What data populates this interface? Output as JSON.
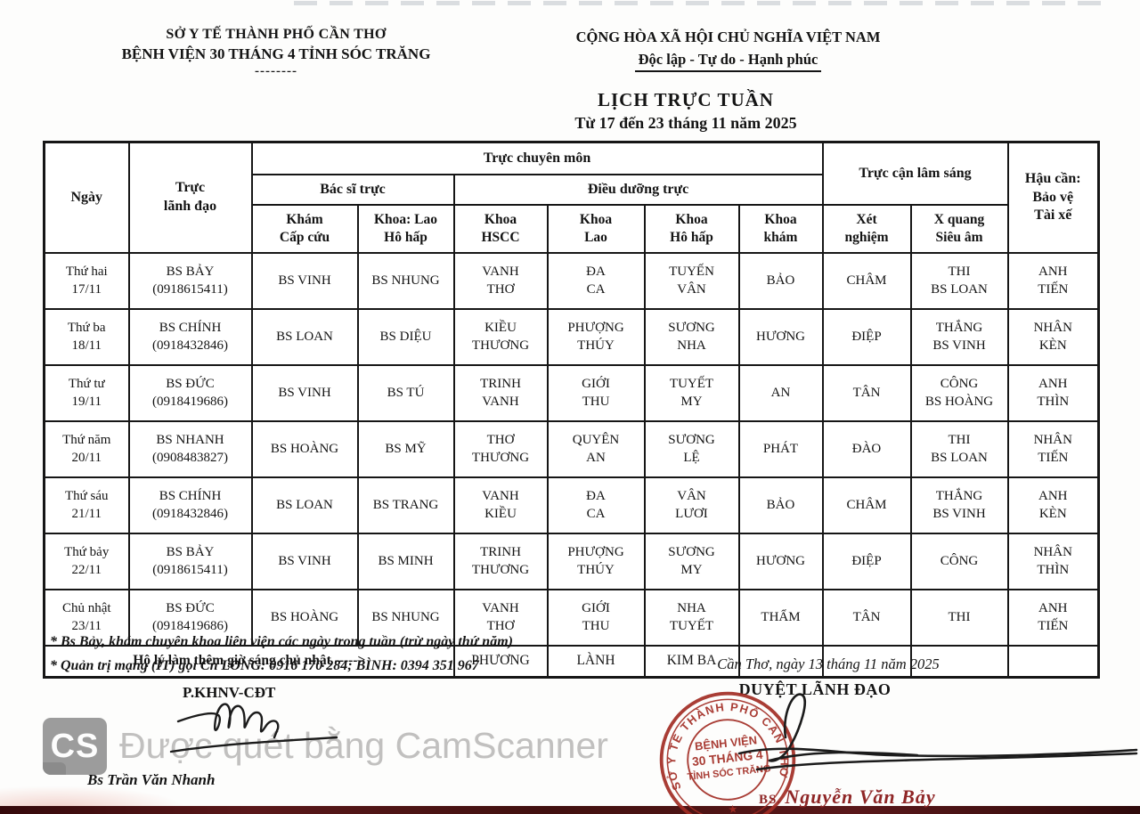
{
  "page": {
    "header_left": {
      "line1": "SỞ Y TẾ THÀNH PHỐ CẦN THƠ",
      "line2": "BỆNH VIỆN 30 THÁNG 4 TỈNH SÓC TRĂNG",
      "divider": "--------"
    },
    "header_right": {
      "line1": "CỘNG HÒA XÃ HỘI CHỦ NGHĨA VIỆT NAM",
      "line2": "Độc lập - Tự do - Hạnh phúc"
    },
    "title": "LỊCH TRỰC TUẦN",
    "subtitle": "Từ  17 đến 23 tháng 11 năm 2025"
  },
  "table": {
    "header": {
      "ngay": "Ngày",
      "truc_lanh_dao": "Trực\nlãnh đạo",
      "truc_chuyen_mon": "Trực chuyên môn",
      "bac_si_truc": "Bác sĩ trực",
      "dieu_duong_truc": "Điều dưỡng trực",
      "truc_can_lam_sang": "Trực cận lâm sáng",
      "hau_can": "Hậu cần:\nBảo vệ\nTài xế",
      "sub": [
        "Khám\nCấp cứu",
        "Khoa: Lao\nHô hấp",
        "Khoa\nHSCC",
        "Khoa\nLao",
        "Khoa\nHô hấp",
        "Khoa\nkhám",
        "Xét\nnghiệm",
        "X quang\nSiêu âm"
      ]
    },
    "rows": [
      {
        "day": "Thứ hai\n17/11",
        "leader": "BS BẢY\n(0918615411)",
        "cells": [
          "BS VINH",
          "BS NHUNG",
          "VANH\nTHƠ",
          "ĐA\nCA",
          "TUYẾN\nVÂN",
          "BẢO",
          "CHÂM",
          "THI\nBS LOAN",
          "ANH\nTIẾN"
        ]
      },
      {
        "day": "Thứ ba\n18/11",
        "leader": "BS CHÍNH\n(0918432846)",
        "cells": [
          "BS LOAN",
          "BS DIỆU",
          "KIỀU\nTHƯƠNG",
          "PHƯỢNG\nTHÚY",
          "SƯƠNG\nNHA",
          "HƯƠNG",
          "ĐIỆP",
          "THẮNG\nBS VINH",
          "NHÂN\nKÈN"
        ]
      },
      {
        "day": "Thứ tư\n19/11",
        "leader": "BS ĐỨC\n(0918419686)",
        "cells": [
          "BS VINH",
          "BS TÚ",
          "TRINH\nVANH",
          "GIỚI\nTHU",
          "TUYẾT\nMY",
          "AN",
          "TÂN",
          "CÔNG\nBS HOÀNG",
          "ANH\nTHÌN"
        ]
      },
      {
        "day": "Thứ năm\n20/11",
        "leader": "BS NHANH\n(0908483827)",
        "cells": [
          "BS HOÀNG",
          "BS MỸ",
          "THƠ\nTHƯƠNG",
          "QUYÊN\nAN",
          "SƯƠNG\nLỆ",
          "PHÁT",
          "ĐÀO",
          "THI\nBS LOAN",
          "NHÂN\nTIẾN"
        ]
      },
      {
        "day": "Thứ sáu\n21/11",
        "leader": "BS CHÍNH\n(0918432846)",
        "cells": [
          "BS LOAN",
          "BS TRANG",
          "VANH\nKIỀU",
          "ĐA\nCA",
          "VÂN\nLƯƠI",
          "BẢO",
          "CHÂM",
          "THẮNG\nBS VINH",
          "ANH\nKÈN"
        ]
      },
      {
        "day": "Thứ bảy\n22/11",
        "leader": "BS BẢY\n(0918615411)",
        "cells": [
          "BS VINH",
          "BS MINH",
          "TRINH\nTHƯƠNG",
          "PHƯỢNG\nTHÚY",
          "SƯƠNG\nMY",
          "HƯƠNG",
          "ĐIỆP",
          "CÔNG",
          "NHÂN\nTHÌN"
        ]
      },
      {
        "day": "Chủ nhật\n23/11",
        "leader": "BS ĐỨC\n(0918419686)",
        "cells": [
          "BS HOÀNG",
          "BS NHUNG",
          "VANH\nTHƠ",
          "GIỚI\nTHU",
          "NHA\nTUYẾT",
          "THẨM",
          "TÂN",
          "THI",
          "ANH\nTIẾN"
        ]
      }
    ],
    "ho_ly_row": {
      "label": "Hộ lý làm thêm giờ sáng chủ nhật  ----->",
      "cells": [
        "PHƯƠNG",
        "LÀNH",
        "KIM BA",
        "",
        "",
        "",
        ""
      ]
    }
  },
  "footer": {
    "note1": "* Bs Bảy, khám chuyên khoa liên viện các ngày trong tuần (trừ ngày thứ năm)",
    "note2": "* Quản trị mạng (IT) gọi Cn LONG: 0916 170 284; BÌNH: 0394 351 967",
    "dept": "P.KHNV-CĐT",
    "place_date": "Cần Thơ, ngày 13 tháng 11 năm 2025",
    "approve": "DUYỆT LÃNH ĐẠO",
    "signer_left": "Bs Trần Văn Nhanh",
    "signer_right_prefix": "BS.",
    "signer_right_name": "Nguyễn Văn Bảy"
  },
  "stamp": {
    "arc_text": "SỞ Y TẾ THÀNH PHỐ CẦN THƠ",
    "center_line1": "BỆNH VIỆN",
    "center_line2": "30 THÁNG 4",
    "center_line3": "TỈNH SÓC TRĂNG",
    "star": "★",
    "color": "#a22d25"
  },
  "watermark": {
    "logo": "CS",
    "text": "Được quét bằng CamScanner"
  }
}
